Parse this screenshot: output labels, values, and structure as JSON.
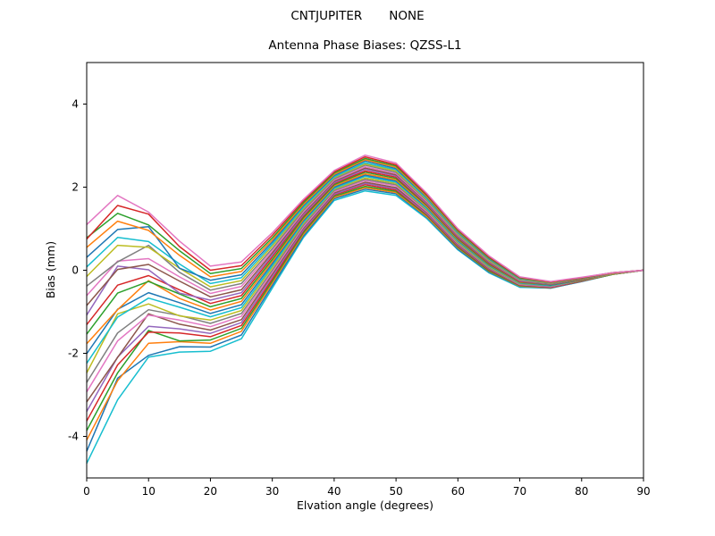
{
  "figure": {
    "background": "#ffffff",
    "axes_edge_color": "#000000",
    "suptitle": "CNTJUPITER       NONE"
  },
  "chart_data": {
    "type": "line",
    "title": "Antenna Phase Biases: QZSS-L1",
    "xlabel": "Elvation angle (degrees)",
    "ylabel": "Bias (mm)",
    "xlim": [
      0,
      90
    ],
    "ylim": [
      -5,
      5
    ],
    "xticks": [
      0,
      10,
      20,
      30,
      40,
      50,
      60,
      70,
      80,
      90
    ],
    "yticks": [
      -4,
      -2,
      0,
      2,
      4
    ],
    "grid": false,
    "legend": "none",
    "line_width": 1.5,
    "x": [
      0,
      5,
      10,
      15,
      20,
      25,
      30,
      35,
      40,
      45,
      50,
      55,
      60,
      65,
      70,
      75,
      80,
      85,
      90
    ],
    "series": [
      {
        "color": "#17becf",
        "values": [
          -4.65,
          -3.12,
          -2.09,
          -1.97,
          -1.95,
          -1.65,
          -0.43,
          0.78,
          1.68,
          1.91,
          1.8,
          1.24,
          0.49,
          -0.06,
          -0.41,
          -0.43,
          -0.27,
          -0.1,
          0.0
        ]
      },
      {
        "color": "#1f77b4",
        "values": [
          -4.36,
          -2.6,
          -2.05,
          -1.84,
          -1.85,
          -1.56,
          -0.37,
          0.82,
          1.72,
          1.95,
          1.84,
          1.27,
          0.51,
          -0.04,
          -0.39,
          -0.43,
          -0.27,
          -0.1,
          0.0
        ]
      },
      {
        "color": "#ff7f0e",
        "values": [
          -4.09,
          -2.66,
          -1.76,
          -1.72,
          -1.76,
          -1.47,
          -0.31,
          0.86,
          1.75,
          1.99,
          1.87,
          1.29,
          0.54,
          -0.02,
          -0.38,
          -0.42,
          -0.26,
          -0.1,
          0.0
        ]
      },
      {
        "color": "#2ca02c",
        "values": [
          -3.86,
          -2.47,
          -1.45,
          -1.7,
          -1.68,
          -1.4,
          -0.26,
          0.9,
          1.78,
          2.02,
          1.9,
          1.32,
          0.56,
          -0.01,
          -0.37,
          -0.41,
          -0.26,
          -0.1,
          0.0
        ]
      },
      {
        "color": "#d62728",
        "values": [
          -3.63,
          -2.28,
          -1.49,
          -1.51,
          -1.6,
          -1.33,
          -0.21,
          0.94,
          1.81,
          2.06,
          1.93,
          1.34,
          0.58,
          0.01,
          -0.36,
          -0.41,
          -0.26,
          -0.09,
          0.0
        ]
      },
      {
        "color": "#9467bd",
        "values": [
          -3.4,
          -2.09,
          -1.35,
          -1.41,
          -1.52,
          -1.26,
          -0.15,
          0.97,
          1.83,
          2.09,
          1.96,
          1.36,
          0.6,
          0.03,
          -0.35,
          -0.4,
          -0.25,
          -0.09,
          0.0
        ]
      },
      {
        "color": "#8c564b",
        "values": [
          -3.17,
          -2.1,
          -1.05,
          -1.3,
          -1.44,
          -1.19,
          -0.1,
          1.01,
          1.86,
          2.12,
          1.99,
          1.39,
          0.62,
          0.04,
          -0.34,
          -0.39,
          -0.25,
          -0.09,
          0.0
        ]
      },
      {
        "color": "#e377c2",
        "values": [
          -2.93,
          -1.7,
          -1.08,
          -1.2,
          -1.36,
          -1.11,
          -0.05,
          1.04,
          1.89,
          2.16,
          2.03,
          1.41,
          0.64,
          0.06,
          -0.34,
          -0.39,
          -0.24,
          -0.09,
          0.0
        ]
      },
      {
        "color": "#7f7f7f",
        "values": [
          -2.7,
          -1.51,
          -0.95,
          -1.09,
          -1.28,
          -1.04,
          0.0,
          1.08,
          1.92,
          2.19,
          2.06,
          1.44,
          0.66,
          0.07,
          -0.33,
          -0.38,
          -0.24,
          -0.09,
          0.0
        ]
      },
      {
        "color": "#bcbd22",
        "values": [
          -2.47,
          -1.05,
          -0.81,
          -1.1,
          -1.2,
          -0.97,
          0.06,
          1.12,
          1.95,
          2.22,
          2.09,
          1.46,
          0.68,
          0.09,
          -0.32,
          -0.37,
          -0.24,
          -0.09,
          0.0
        ]
      },
      {
        "color": "#17becf",
        "values": [
          -2.24,
          -1.13,
          -0.67,
          -0.89,
          -1.12,
          -0.9,
          0.11,
          1.15,
          1.97,
          2.26,
          2.12,
          1.48,
          0.7,
          0.11,
          -0.31,
          -0.37,
          -0.23,
          -0.08,
          0.0
        ]
      },
      {
        "color": "#1f77b4",
        "values": [
          -2.01,
          -0.94,
          -0.54,
          -0.78,
          -1.04,
          -0.83,
          0.16,
          1.19,
          2.0,
          2.29,
          2.15,
          1.51,
          0.72,
          0.12,
          -0.3,
          -0.36,
          -0.23,
          -0.08,
          0.0
        ]
      },
      {
        "color": "#ff7f0e",
        "values": [
          -1.77,
          -0.95,
          -0.25,
          -0.68,
          -0.96,
          -0.75,
          0.21,
          1.22,
          2.03,
          2.32,
          2.18,
          1.53,
          0.74,
          0.14,
          -0.29,
          -0.35,
          -0.22,
          -0.08,
          0.0
        ]
      },
      {
        "color": "#2ca02c",
        "values": [
          -1.54,
          -0.55,
          -0.27,
          -0.57,
          -0.88,
          -0.68,
          0.26,
          1.26,
          2.06,
          2.36,
          2.21,
          1.56,
          0.76,
          0.15,
          -0.28,
          -0.35,
          -0.22,
          -0.08,
          0.0
        ]
      },
      {
        "color": "#d62728",
        "values": [
          -1.31,
          -0.36,
          -0.13,
          -0.47,
          -0.8,
          -0.61,
          0.32,
          1.3,
          2.09,
          2.39,
          2.24,
          1.58,
          0.78,
          0.17,
          -0.27,
          -0.34,
          -0.22,
          -0.08,
          0.0
        ]
      },
      {
        "color": "#9467bd",
        "values": [
          -1.08,
          0.1,
          0.01,
          -0.55,
          -0.72,
          -0.54,
          0.37,
          1.33,
          2.11,
          2.43,
          2.27,
          1.6,
          0.8,
          0.19,
          -0.26,
          -0.34,
          -0.21,
          -0.08,
          0.0
        ]
      },
      {
        "color": "#8c564b",
        "values": [
          -0.85,
          0.02,
          0.14,
          -0.26,
          -0.64,
          -0.47,
          0.42,
          1.37,
          2.14,
          2.46,
          2.3,
          1.63,
          0.82,
          0.2,
          -0.25,
          -0.33,
          -0.21,
          -0.07,
          0.0
        ]
      },
      {
        "color": "#e377c2",
        "values": [
          -0.61,
          0.22,
          0.28,
          -0.16,
          -0.56,
          -0.39,
          0.47,
          1.4,
          2.17,
          2.49,
          2.33,
          1.65,
          0.84,
          0.22,
          -0.24,
          -0.32,
          -0.2,
          -0.07,
          0.0
        ]
      },
      {
        "color": "#7f7f7f",
        "values": [
          -0.38,
          0.2,
          0.6,
          -0.05,
          -0.48,
          -0.32,
          0.52,
          1.44,
          2.2,
          2.53,
          2.36,
          1.68,
          0.86,
          0.23,
          -0.23,
          -0.32,
          -0.2,
          -0.07,
          0.0
        ]
      },
      {
        "color": "#bcbd22",
        "values": [
          -0.15,
          0.6,
          0.55,
          0.05,
          -0.4,
          -0.25,
          0.58,
          1.48,
          2.23,
          2.56,
          2.39,
          1.7,
          0.88,
          0.25,
          -0.22,
          -0.31,
          -0.2,
          -0.07,
          0.0
        ]
      },
      {
        "color": "#17becf",
        "values": [
          0.08,
          0.79,
          0.69,
          0.15,
          -0.32,
          -0.18,
          0.63,
          1.51,
          2.25,
          2.59,
          2.42,
          1.72,
          0.9,
          0.27,
          -0.21,
          -0.3,
          -0.19,
          -0.07,
          0.0
        ]
      },
      {
        "color": "#1f77b4",
        "values": [
          0.31,
          0.98,
          1.05,
          0.05,
          -0.24,
          -0.11,
          0.68,
          1.55,
          2.28,
          2.63,
          2.45,
          1.75,
          0.92,
          0.28,
          -0.2,
          -0.3,
          -0.19,
          -0.07,
          0.0
        ]
      },
      {
        "color": "#ff7f0e",
        "values": [
          0.55,
          1.18,
          0.96,
          0.36,
          -0.16,
          -0.03,
          0.73,
          1.58,
          2.31,
          2.66,
          2.48,
          1.77,
          0.94,
          0.3,
          -0.19,
          -0.29,
          -0.18,
          -0.07,
          0.0
        ]
      },
      {
        "color": "#2ca02c",
        "values": [
          0.78,
          1.37,
          1.09,
          0.47,
          -0.08,
          0.04,
          0.78,
          1.62,
          2.34,
          2.69,
          2.51,
          1.8,
          0.96,
          0.31,
          -0.18,
          -0.28,
          -0.18,
          -0.06,
          0.0
        ]
      },
      {
        "color": "#d62728",
        "values": [
          0.75,
          1.56,
          1.35,
          0.57,
          0.0,
          0.11,
          0.84,
          1.66,
          2.37,
          2.73,
          2.54,
          1.82,
          0.98,
          0.33,
          -0.17,
          -0.28,
          -0.18,
          -0.06,
          0.0
        ]
      },
      {
        "color": "#e377c2",
        "values": [
          1.1,
          1.8,
          1.4,
          0.7,
          0.1,
          0.2,
          0.9,
          1.7,
          2.4,
          2.77,
          2.58,
          1.85,
          1.0,
          0.35,
          -0.16,
          -0.27,
          -0.17,
          -0.06,
          0.0
        ]
      }
    ]
  }
}
